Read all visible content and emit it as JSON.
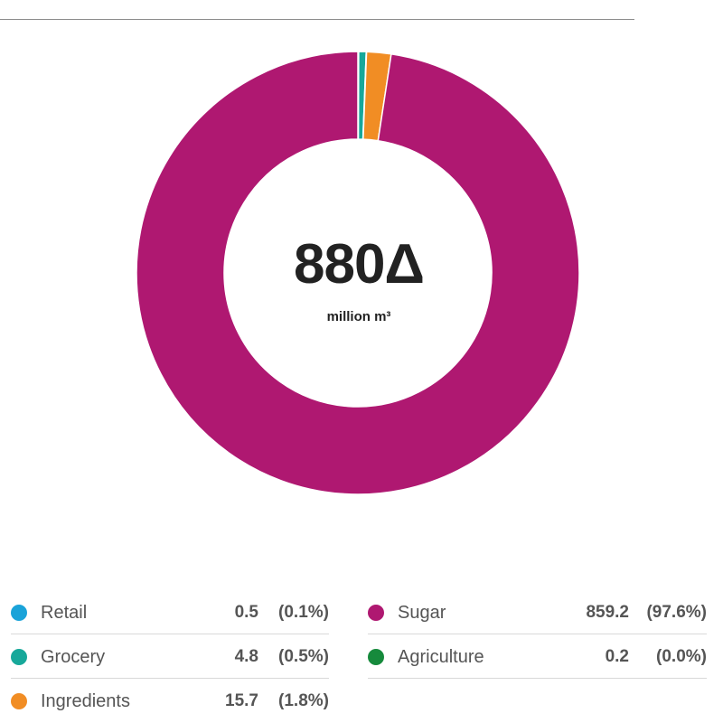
{
  "chart_data": {
    "type": "pie",
    "center_value": "880Δ",
    "center_unit": "million m³",
    "slices": [
      {
        "name": "Retail",
        "value": 0.5,
        "percent": "(0.1%)",
        "color": "#1aa3d9"
      },
      {
        "name": "Grocery",
        "value": 4.8,
        "percent": "(0.5%)",
        "color": "#17a89a"
      },
      {
        "name": "Ingredients",
        "value": 15.7,
        "percent": "(1.8%)",
        "color": "#f18d24"
      },
      {
        "name": "Sugar",
        "value": 859.2,
        "percent": "(97.6%)",
        "color": "#af1871"
      },
      {
        "name": "Agriculture",
        "value": 0.2,
        "percent": "(0.0%)",
        "color": "#168a3c"
      }
    ],
    "legend_position": "bottom"
  }
}
